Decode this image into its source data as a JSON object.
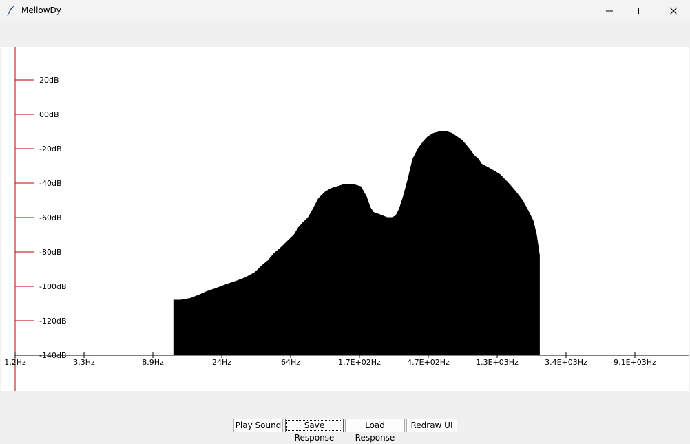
{
  "window": {
    "title": "MellowDy",
    "icon": "feather-icon",
    "controls": [
      "minimize-icon",
      "maximize-icon",
      "close-icon"
    ]
  },
  "chart_data": {
    "type": "area",
    "title": "",
    "xlabel": "",
    "ylabel": "",
    "x_scale": "log",
    "x_tick_labels": [
      "1.2Hz",
      "3.3Hz",
      "8.9Hz",
      "24Hz",
      "64Hz",
      "1.7E+02Hz",
      "4.7E+02Hz",
      "1.3E+03Hz",
      "3.4E+03Hz",
      "9.1E+03Hz"
    ],
    "y_tick_labels": [
      "20dB",
      "00dB",
      "-20dB",
      "-40dB",
      "-60dB",
      "-80dB",
      "-100dB",
      "-120dB",
      "-140dB"
    ],
    "y_ticks": [
      20,
      0,
      -20,
      -40,
      -60,
      -80,
      -100,
      -120,
      -140
    ],
    "ylim": [
      -140,
      20
    ],
    "xlim_hz": [
      1.2,
      9100
    ],
    "grid": false,
    "axis_color": "#c00000",
    "fill_color": "#000000",
    "series": [
      {
        "x_hz": [
          11.8,
          13,
          15,
          17,
          19,
          22,
          25,
          29,
          33,
          38,
          42,
          46,
          50,
          56,
          62,
          67,
          71,
          76,
          82,
          88,
          95,
          105,
          115,
          125,
          135,
          145,
          160,
          175,
          190,
          200,
          210,
          225,
          240,
          255,
          275,
          290,
          305,
          325,
          345,
          370,
          400,
          430,
          460,
          500,
          550,
          600,
          650,
          700,
          750,
          800,
          850,
          900,
          950,
          1000,
          1100,
          1200,
          1300,
          1400,
          1500,
          1600,
          1700,
          1800,
          1900,
          2000,
          2100,
          2200,
          2300
        ],
        "db": [
          -108,
          -108,
          -107,
          -105,
          -103,
          -101,
          -99,
          -97,
          -95,
          -92,
          -88,
          -85,
          -81,
          -77,
          -73,
          -70,
          -66,
          -63,
          -60,
          -55,
          -49,
          -45,
          -43,
          -42,
          -41,
          -41,
          -41,
          -42,
          -48,
          -54,
          -57,
          -58,
          -59,
          -60,
          -60,
          -59,
          -55,
          -47,
          -38,
          -26,
          -20,
          -16,
          -13,
          -11,
          -10,
          -10,
          -11,
          -13,
          -15,
          -18,
          -21,
          -24,
          -26,
          -29,
          -31,
          -33,
          -35,
          -38,
          -41,
          -44,
          -47,
          -50,
          -54,
          -58,
          -62,
          -70,
          -82
        ]
      }
    ]
  },
  "buttons": {
    "play_label": "Play Sound",
    "save_label": "Save Response",
    "load_label": "Load Response",
    "redraw_label": "Redraw UI"
  }
}
